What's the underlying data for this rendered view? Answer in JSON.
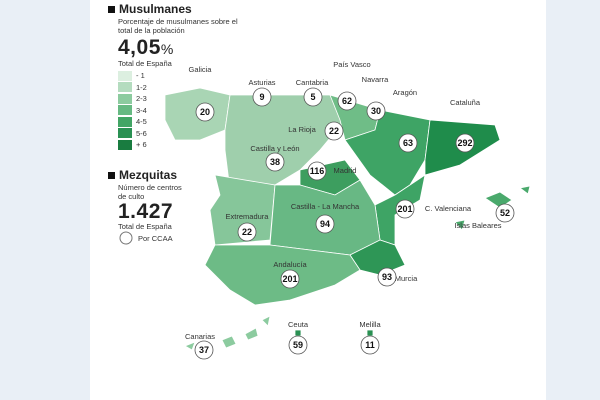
{
  "muslims": {
    "title": "Musulmanes",
    "description": "Porcentaje de musulmanes sobre el total de la población",
    "total": "4,05",
    "unit": "%",
    "total_label": "Total de España",
    "legend": [
      {
        "label": "- 1",
        "color": "#dcefe0"
      },
      {
        "label": "1-2",
        "color": "#b4dcbf"
      },
      {
        "label": "2-3",
        "color": "#8ccb9f"
      },
      {
        "label": "3-4",
        "color": "#66b982"
      },
      {
        "label": "4-5",
        "color": "#42a565"
      },
      {
        "label": "5-6",
        "color": "#2a9153"
      },
      {
        "label": "+ 6",
        "color": "#197c40"
      }
    ]
  },
  "mosques": {
    "title": "Mezquitas",
    "description": "Número de centros de culto",
    "total": "1.427",
    "total_label": "Total de España",
    "legend_label": "Por CCAA"
  },
  "regions": [
    {
      "name": "Galicia",
      "mosques": 20
    },
    {
      "name": "Asturias",
      "mosques": 9
    },
    {
      "name": "Cantabria",
      "mosques": 5
    },
    {
      "name": "País Vasco",
      "mosques": 62
    },
    {
      "name": "Navarra",
      "mosques": 30
    },
    {
      "name": "Aragón",
      "mosques": 63
    },
    {
      "name": "Cataluña",
      "mosques": 292
    },
    {
      "name": "La Rioja",
      "mosques": 22
    },
    {
      "name": "Castilla y León",
      "mosques": 38
    },
    {
      "name": "Madrid",
      "mosques": 116
    },
    {
      "name": "Extremadura",
      "mosques": 22
    },
    {
      "name": "Castilla - La Mancha",
      "mosques": 94
    },
    {
      "name": "C. Valenciana",
      "mosques": 201
    },
    {
      "name": "Islas Baleares",
      "mosques": 52
    },
    {
      "name": "Andalucía",
      "mosques": 201
    },
    {
      "name": "Murcia",
      "mosques": 93
    },
    {
      "name": "Canarias",
      "mosques": 37
    },
    {
      "name": "Ceuta",
      "mosques": 59
    },
    {
      "name": "Melilla",
      "mosques": 11
    }
  ]
}
